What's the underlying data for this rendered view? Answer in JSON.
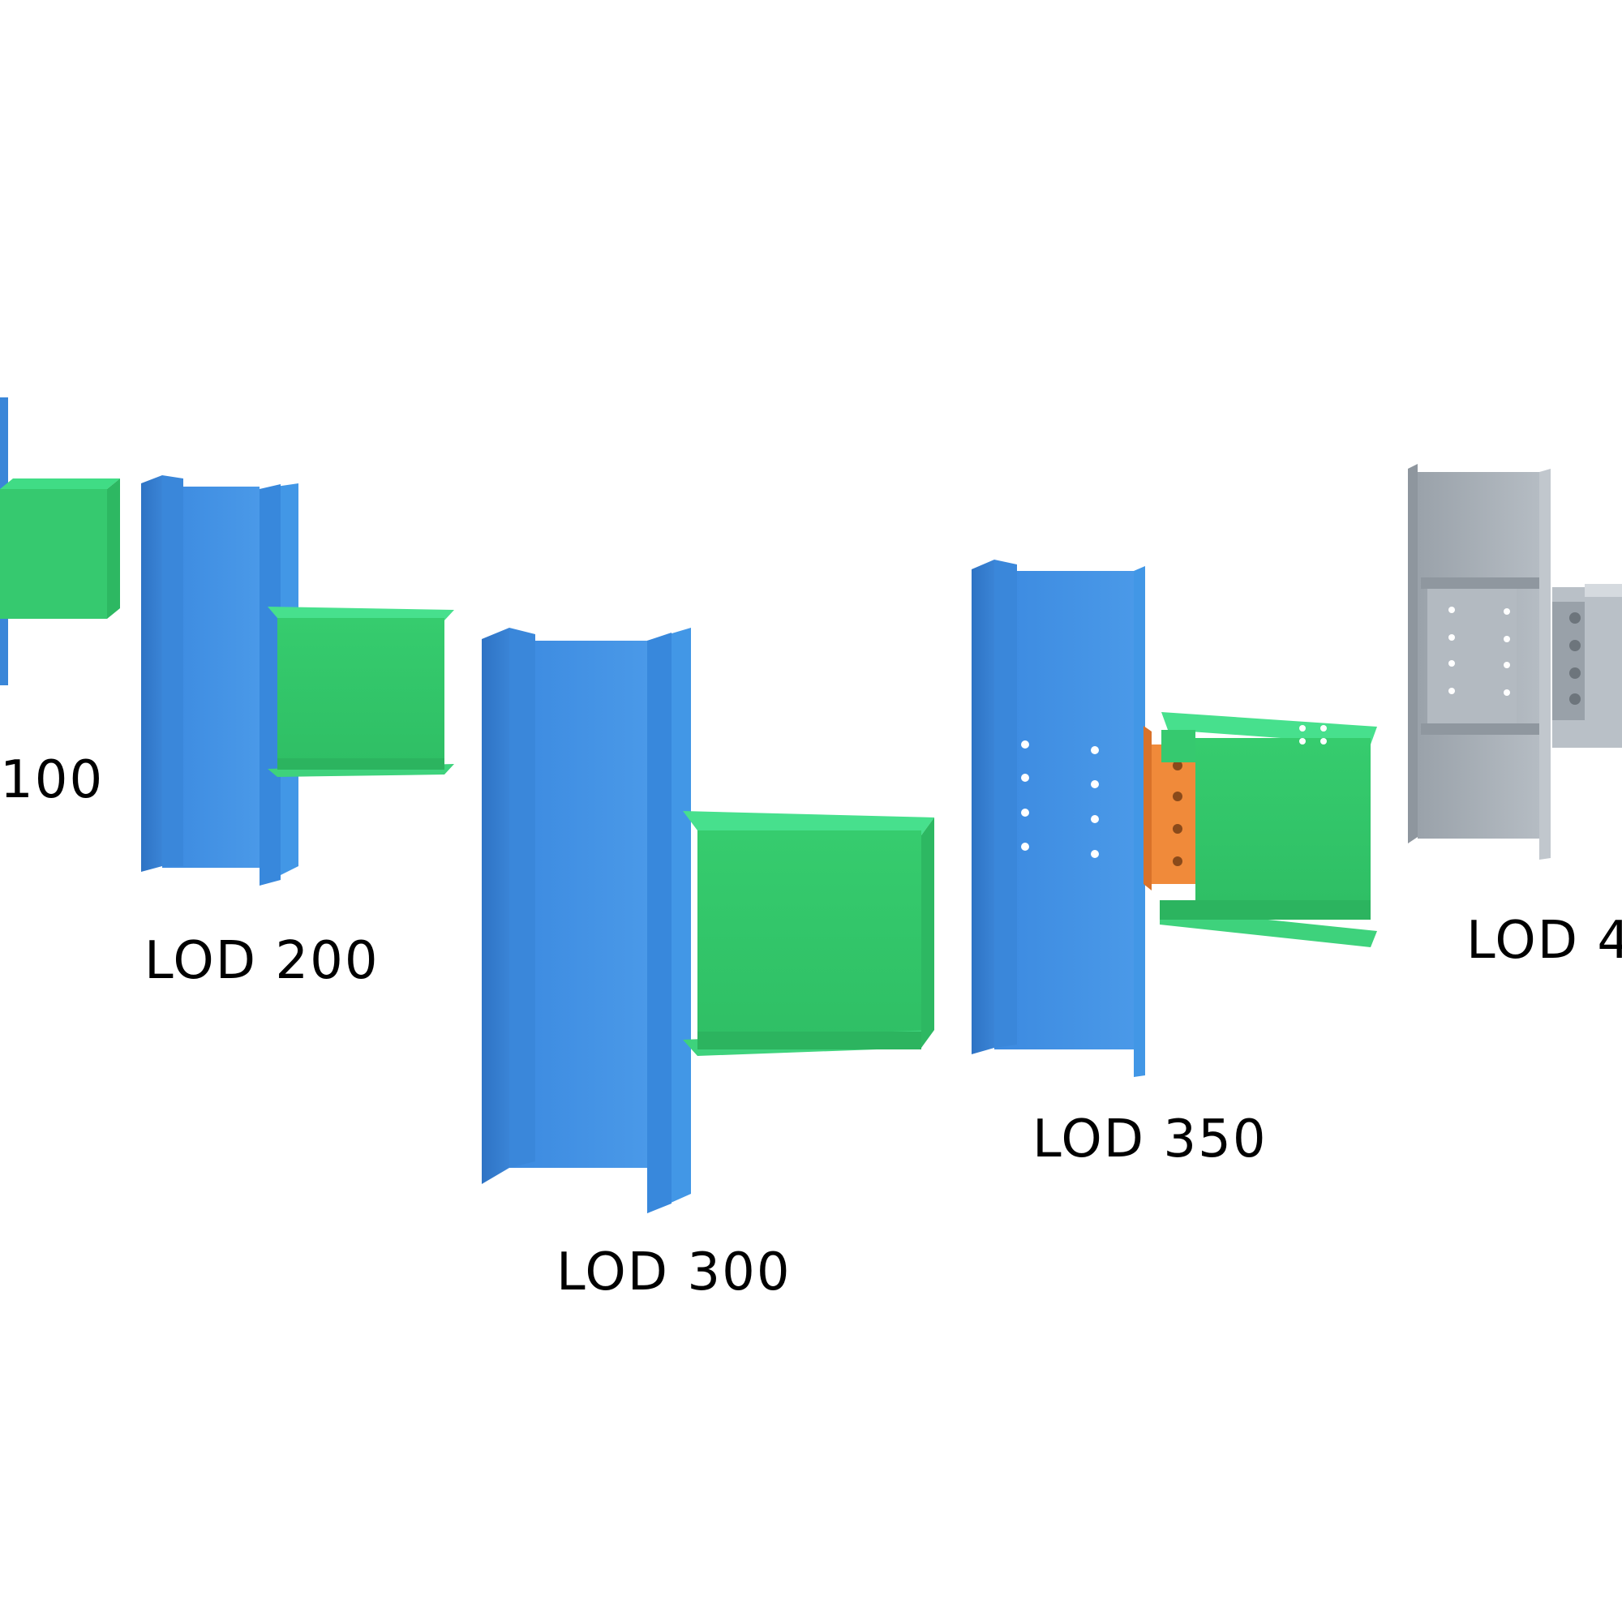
{
  "labels": {
    "lod100": "100",
    "lod200": "LOD 200",
    "lod300": "LOD 300",
    "lod350": "LOD 350",
    "lod400": "LOD 4"
  },
  "colors": {
    "background": "#ffffff",
    "column_blue": "#3f8fe0",
    "beam_green": "#3ed87a",
    "connection_plate_orange": "#f08a3a",
    "steel_gray": "#a9b0b7",
    "label_text": "#000000"
  },
  "icons": {
    "column": "blue-i-beam-column",
    "beam": "green-i-beam",
    "plate": "orange-shear-plate",
    "bolt": "bolt-dot"
  }
}
